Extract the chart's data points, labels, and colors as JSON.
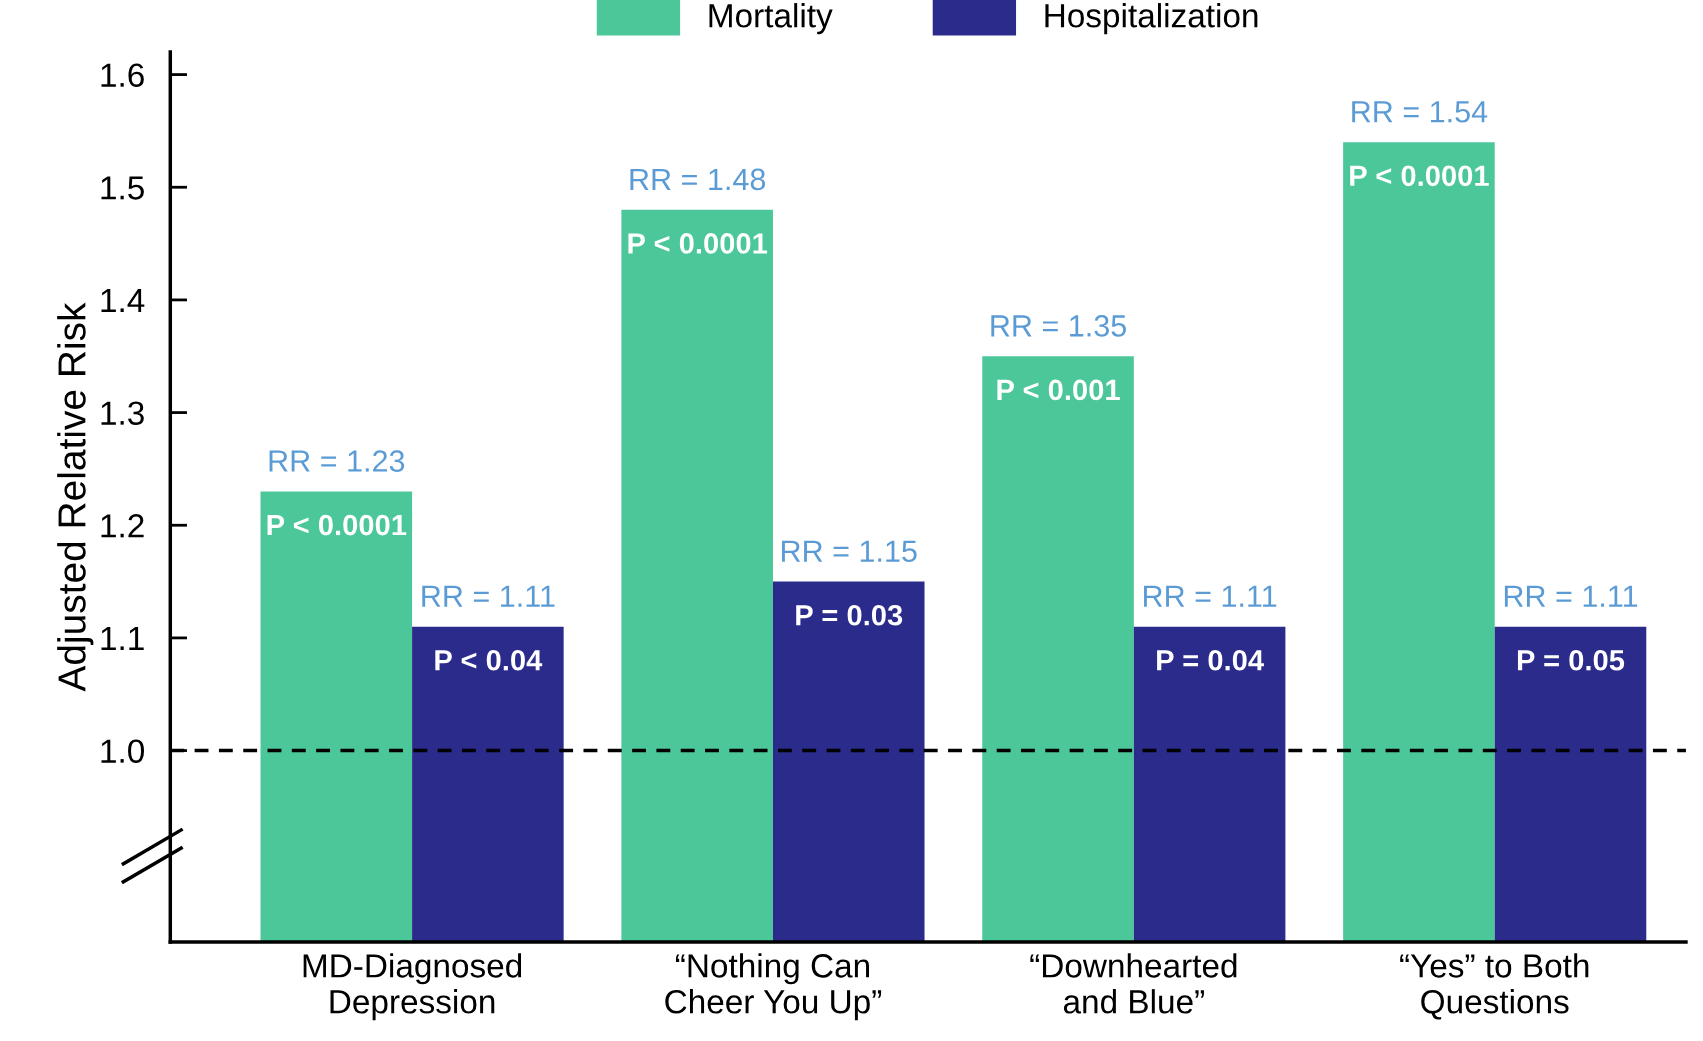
{
  "chart_data": {
    "type": "bar",
    "ylabel": "Adjusted Relative Risk",
    "categories": [
      "MD-Diagnosed\nDepression",
      "“Nothing Can\nCheer You Up”",
      "“Downhearted\nand Blue”",
      "“Yes” to Both\nQuestions"
    ],
    "series": [
      {
        "name": "Mortality",
        "color": "#4cc79a",
        "values": [
          1.23,
          1.48,
          1.35,
          1.54
        ],
        "value_labels": [
          "RR = 1.23",
          "RR = 1.48",
          "RR = 1.35",
          "RR = 1.54"
        ]
      },
      {
        "name": "Hospitalization",
        "color": "#2b2b8c",
        "values": [
          1.11,
          1.15,
          1.11,
          1.11
        ],
        "value_labels": [
          "RR = 1.11",
          "RR = 1.15",
          "RR = 1.11",
          "RR = 1.11"
        ]
      }
    ],
    "ylim": [
      0.83,
      1.62
    ],
    "yticks": [
      {
        "value": 1.0,
        "label": "1.0"
      },
      1.1,
      1.2,
      1.3,
      1.4,
      1.5,
      1.6
    ],
    "ref_lines": [
      {
        "axis": "y",
        "value": 1.0,
        "color": "#000000",
        "line_style": "dashed"
      }
    ],
    "annotations": [
      {
        "text": "P < 0.0001",
        "x": "MD-Diagnosed\nDepression",
        "y": 1.23
      },
      {
        "text": "P < 0.04",
        "x": "MD-Diagnosed\nDepression",
        "y": 1.11
      },
      {
        "text": "P < 0.0001",
        "x": "“Nothing Can\nCheer You Up”",
        "y": 1.48
      },
      {
        "text": "P = 0.03",
        "x": "“Nothing Can\nCheer You Up”",
        "y": 1.15
      },
      {
        "text": "P < 0.001",
        "x": "“Downhearted\nand Blue”",
        "y": 1.35
      },
      {
        "text": "P = 0.04",
        "x": "“Downhearted\nand Blue”",
        "y": 1.11
      },
      {
        "text": "P < 0.0001",
        "x": "“Yes” to Both\nQuestions",
        "y": 1.54
      },
      {
        "text": "P = 0.05",
        "x": "“Yes” to Both\nQuestions",
        "y": 1.11
      }
    ],
    "legend": "top",
    "grid": false
  }
}
